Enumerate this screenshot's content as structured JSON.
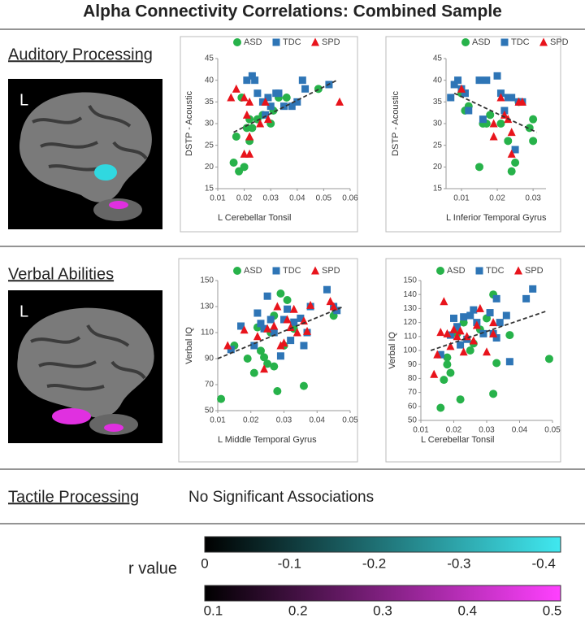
{
  "title": "Alpha Connectivity Correlations: Combined Sample",
  "sections": [
    "Auditory Processing",
    "Verbal Abilities",
    "Tactile Processing"
  ],
  "tactile_result": "No Significant Associations",
  "brain_images": [
    {
      "label": "L"
    },
    {
      "label": "L"
    }
  ],
  "colorbars": {
    "label": "r value",
    "bars": [
      {
        "color_from": "#000000",
        "color_to": "#40e8f0",
        "xlim": [
          0,
          -0.42
        ],
        "xticks": [
          0,
          -0.1,
          -0.2,
          -0.3,
          -0.4
        ]
      },
      {
        "color_from": "#000000",
        "color_to": "#ff40ff",
        "xlim": [
          0.09,
          0.51
        ],
        "xticks": [
          0.1,
          0.2,
          0.3,
          0.4,
          0.5
        ]
      }
    ]
  },
  "chart_data": [
    {
      "type": "scatter",
      "xlabel": "L Cerebellar Tonsil",
      "ylabel": "DSTP - Acoustic",
      "legend": "top",
      "xlim": [
        0.01,
        0.06
      ],
      "ylim": [
        15,
        45
      ],
      "xticks": [
        0.01,
        0.02,
        0.03,
        0.04,
        0.05,
        0.06
      ],
      "yticks": [
        15,
        20,
        25,
        30,
        35,
        40,
        45
      ],
      "series": [
        {
          "name": "ASD",
          "color": "#27b24a",
          "marker": "circle",
          "x": [
            0.016,
            0.018,
            0.017,
            0.019,
            0.021,
            0.022,
            0.023,
            0.02,
            0.025,
            0.027,
            0.03,
            0.031,
            0.033,
            0.036,
            0.048,
            0.022
          ],
          "values": [
            21,
            19,
            27,
            36,
            29,
            31,
            29,
            20,
            31,
            32,
            30,
            33,
            36,
            36,
            38,
            26
          ]
        },
        {
          "name": "TDC",
          "color": "#2e75b6",
          "marker": "square",
          "x": [
            0.021,
            0.023,
            0.024,
            0.025,
            0.027,
            0.029,
            0.03,
            0.032,
            0.033,
            0.035,
            0.038,
            0.04,
            0.042,
            0.043,
            0.052,
            0.028
          ],
          "values": [
            40,
            41,
            40,
            37,
            35,
            36,
            34,
            37,
            37,
            34,
            34,
            35,
            40,
            38,
            39,
            32
          ]
        },
        {
          "name": "SPD",
          "color": "#e8141c",
          "marker": "triangle",
          "x": [
            0.015,
            0.017,
            0.02,
            0.021,
            0.022,
            0.02,
            0.022,
            0.022,
            0.026,
            0.029,
            0.056,
            0.028
          ],
          "values": [
            36,
            38,
            36,
            32,
            35,
            23,
            23,
            27,
            30,
            31,
            35,
            35
          ]
        }
      ],
      "trendline": {
        "x": [
          0.016,
          0.055
        ],
        "y": [
          28,
          40
        ]
      }
    },
    {
      "type": "scatter",
      "xlabel": "L Inferior Temporal Gyrus",
      "ylabel": "DSTP - Acoustic",
      "legend": "top",
      "xlim": [
        0.0057,
        0.0336
      ],
      "ylim": [
        15,
        45
      ],
      "xticks": [
        0.01,
        0.02,
        0.03
      ],
      "yticks": [
        15,
        20,
        25,
        30,
        35,
        40,
        45
      ],
      "series": [
        {
          "name": "ASD",
          "color": "#27b24a",
          "marker": "circle",
          "x": [
            0.01,
            0.011,
            0.012,
            0.015,
            0.016,
            0.017,
            0.021,
            0.023,
            0.024,
            0.025,
            0.026,
            0.029,
            0.03,
            0.03,
            0.018
          ],
          "values": [
            37,
            33,
            34,
            20,
            30,
            30,
            30,
            26,
            19,
            21,
            35,
            29,
            31,
            26,
            32
          ]
        },
        {
          "name": "TDC",
          "color": "#2e75b6",
          "marker": "square",
          "x": [
            0.007,
            0.008,
            0.009,
            0.01,
            0.011,
            0.012,
            0.015,
            0.016,
            0.017,
            0.02,
            0.021,
            0.022,
            0.023,
            0.024,
            0.025,
            0.026,
            0.027,
            0.011
          ],
          "values": [
            36,
            39,
            40,
            38,
            37,
            33,
            40,
            31,
            40,
            41,
            37,
            33,
            36,
            36,
            24,
            35,
            35,
            37
          ]
        },
        {
          "name": "SPD",
          "color": "#e8141c",
          "marker": "triangle",
          "x": [
            0.01,
            0.019,
            0.019,
            0.021,
            0.022,
            0.023,
            0.024,
            0.024,
            0.026,
            0.027
          ],
          "values": [
            38,
            27,
            30,
            36,
            32,
            31,
            28,
            23,
            35,
            35
          ]
        }
      ],
      "trendline": {
        "x": [
          0.008,
          0.031
        ],
        "y": [
          37,
          28
        ]
      }
    },
    {
      "type": "scatter",
      "xlabel": "L Middle Temporal Gyrus",
      "ylabel": "Verbal IQ",
      "legend": "top",
      "xlim": [
        0.01,
        0.05
      ],
      "ylim": [
        50,
        150
      ],
      "xticks": [
        0.01,
        0.02,
        0.03,
        0.04,
        0.05
      ],
      "yticks": [
        50,
        70,
        90,
        110,
        130,
        150
      ],
      "series": [
        {
          "name": "ASD",
          "color": "#27b24a",
          "marker": "circle",
          "x": [
            0.011,
            0.015,
            0.019,
            0.021,
            0.022,
            0.023,
            0.024,
            0.025,
            0.026,
            0.027,
            0.027,
            0.028,
            0.029,
            0.03,
            0.033,
            0.036,
            0.045,
            0.031
          ],
          "values": [
            59,
            100,
            90,
            79,
            114,
            96,
            91,
            86,
            110,
            123,
            84,
            65,
            140,
            100,
            113,
            69,
            123,
            135
          ]
        },
        {
          "name": "TDC",
          "color": "#2e75b6",
          "marker": "square",
          "x": [
            0.014,
            0.017,
            0.021,
            0.022,
            0.023,
            0.024,
            0.025,
            0.026,
            0.027,
            0.029,
            0.03,
            0.031,
            0.032,
            0.033,
            0.035,
            0.036,
            0.037,
            0.038,
            0.043,
            0.046,
            0.045
          ],
          "values": [
            97,
            115,
            100,
            125,
            117,
            113,
            138,
            120,
            110,
            92,
            120,
            128,
            104,
            118,
            121,
            100,
            110,
            130,
            143,
            127,
            130
          ]
        },
        {
          "name": "SPD",
          "color": "#e8141c",
          "marker": "triangle",
          "x": [
            0.013,
            0.018,
            0.022,
            0.024,
            0.025,
            0.027,
            0.028,
            0.029,
            0.03,
            0.031,
            0.032,
            0.033,
            0.034,
            0.036,
            0.037,
            0.038,
            0.044,
            0.045
          ],
          "values": [
            100,
            112,
            107,
            82,
            113,
            115,
            130,
            100,
            102,
            120,
            114,
            128,
            110,
            119,
            111,
            131,
            134,
            130
          ]
        }
      ],
      "trendline": {
        "x": [
          0.01,
          0.048
        ],
        "y": [
          90,
          130
        ]
      }
    },
    {
      "type": "scatter",
      "xlabel": "L Cerebellar Tonsil",
      "ylabel": "Verbal IQ",
      "legend": "top",
      "xlim": [
        0.01,
        0.05
      ],
      "ylim": [
        50,
        150
      ],
      "xticks": [
        0.01,
        0.02,
        0.03,
        0.04,
        0.05
      ],
      "yticks": [
        50,
        60,
        70,
        80,
        90,
        100,
        110,
        120,
        130,
        140,
        150
      ],
      "series": [
        {
          "name": "ASD",
          "color": "#27b24a",
          "marker": "circle",
          "x": [
            0.016,
            0.017,
            0.018,
            0.019,
            0.021,
            0.022,
            0.023,
            0.025,
            0.026,
            0.028,
            0.03,
            0.032,
            0.032,
            0.033,
            0.037,
            0.049,
            0.018
          ],
          "values": [
            59,
            79,
            90,
            84,
            112,
            65,
            120,
            100,
            105,
            115,
            123,
            140,
            69,
            91,
            111,
            94,
            95
          ]
        },
        {
          "name": "TDC",
          "color": "#2e75b6",
          "marker": "square",
          "x": [
            0.016,
            0.019,
            0.02,
            0.021,
            0.022,
            0.023,
            0.024,
            0.025,
            0.026,
            0.027,
            0.029,
            0.031,
            0.032,
            0.033,
            0.034,
            0.036,
            0.037,
            0.042,
            0.044,
            0.033
          ],
          "values": [
            97,
            111,
            123,
            117,
            104,
            124,
            108,
            125,
            129,
            120,
            112,
            127,
            112,
            109,
            120,
            125,
            92,
            137,
            144,
            137
          ]
        },
        {
          "name": "SPD",
          "color": "#e8141c",
          "marker": "triangle",
          "x": [
            0.014,
            0.015,
            0.016,
            0.017,
            0.018,
            0.019,
            0.02,
            0.021,
            0.022,
            0.023,
            0.024,
            0.026,
            0.027,
            0.028,
            0.03,
            0.032,
            0.032
          ],
          "values": [
            83,
            97,
            113,
            135,
            112,
            103,
            115,
            110,
            114,
            99,
            110,
            107,
            118,
            130,
            99,
            112,
            120
          ]
        }
      ],
      "trendline": {
        "x": [
          0.013,
          0.048
        ],
        "y": [
          100,
          128
        ]
      }
    }
  ]
}
